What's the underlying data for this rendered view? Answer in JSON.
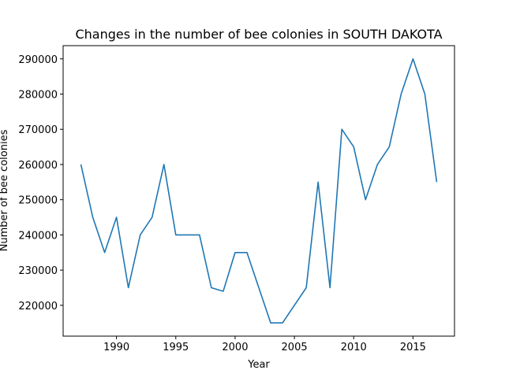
{
  "chart_data": {
    "type": "line",
    "title": "Changes in the number of bee colonies in SOUTH DAKOTA",
    "xlabel": "Year",
    "ylabel": "Number of bee colonies",
    "xlim": [
      1985.5,
      2018.5
    ],
    "ylim": [
      211250,
      293750
    ],
    "xticks": [
      1990,
      1995,
      2000,
      2005,
      2010,
      2015
    ],
    "yticks": [
      220000,
      230000,
      240000,
      250000,
      260000,
      270000,
      280000,
      290000
    ],
    "grid": false,
    "series": [
      {
        "color": "#1f77b4",
        "x": [
          1987,
          1988,
          1989,
          1990,
          1991,
          1992,
          1993,
          1994,
          1995,
          1996,
          1997,
          1998,
          1999,
          2000,
          2001,
          2002,
          2003,
          2004,
          2005,
          2006,
          2007,
          2008,
          2009,
          2010,
          2011,
          2012,
          2013,
          2014,
          2015,
          2016,
          2017
        ],
        "y": [
          260000,
          245000,
          235000,
          245000,
          225000,
          240000,
          245000,
          260000,
          240000,
          240000,
          240000,
          225000,
          224000,
          235000,
          235000,
          225000,
          215000,
          215000,
          220000,
          225000,
          255000,
          225000,
          270000,
          265000,
          250000,
          260000,
          265000,
          280000,
          290000,
          280000,
          255000
        ]
      }
    ]
  }
}
